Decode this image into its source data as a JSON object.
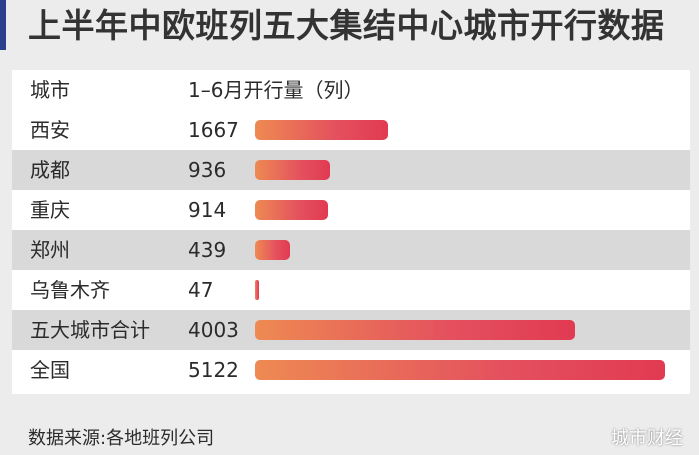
{
  "title": "上半年中欧班列五大集结中心城市开行数据",
  "chart_data": {
    "type": "bar",
    "orientation": "horizontal",
    "title": "上半年中欧班列五大集结中心城市开行数据",
    "column_headers": [
      "城市",
      "1–6月开行量（列）"
    ],
    "categories": [
      "西安",
      "成都",
      "重庆",
      "郑州",
      "乌鲁木齐",
      "五大城市合计",
      "全国"
    ],
    "values": [
      1667,
      936,
      914,
      439,
      47,
      4003,
      5122
    ],
    "xlim": [
      0,
      5122
    ],
    "grid": false,
    "bar_color": "#e4515e"
  },
  "source": "数据来源:各地班列公司",
  "corner_mark": "城市财经",
  "colors": {
    "accent": "#2b3f8c",
    "row_shade": "#d9d9d9",
    "bar_start": "#ee8a52",
    "bar_end": "#e13a52"
  }
}
